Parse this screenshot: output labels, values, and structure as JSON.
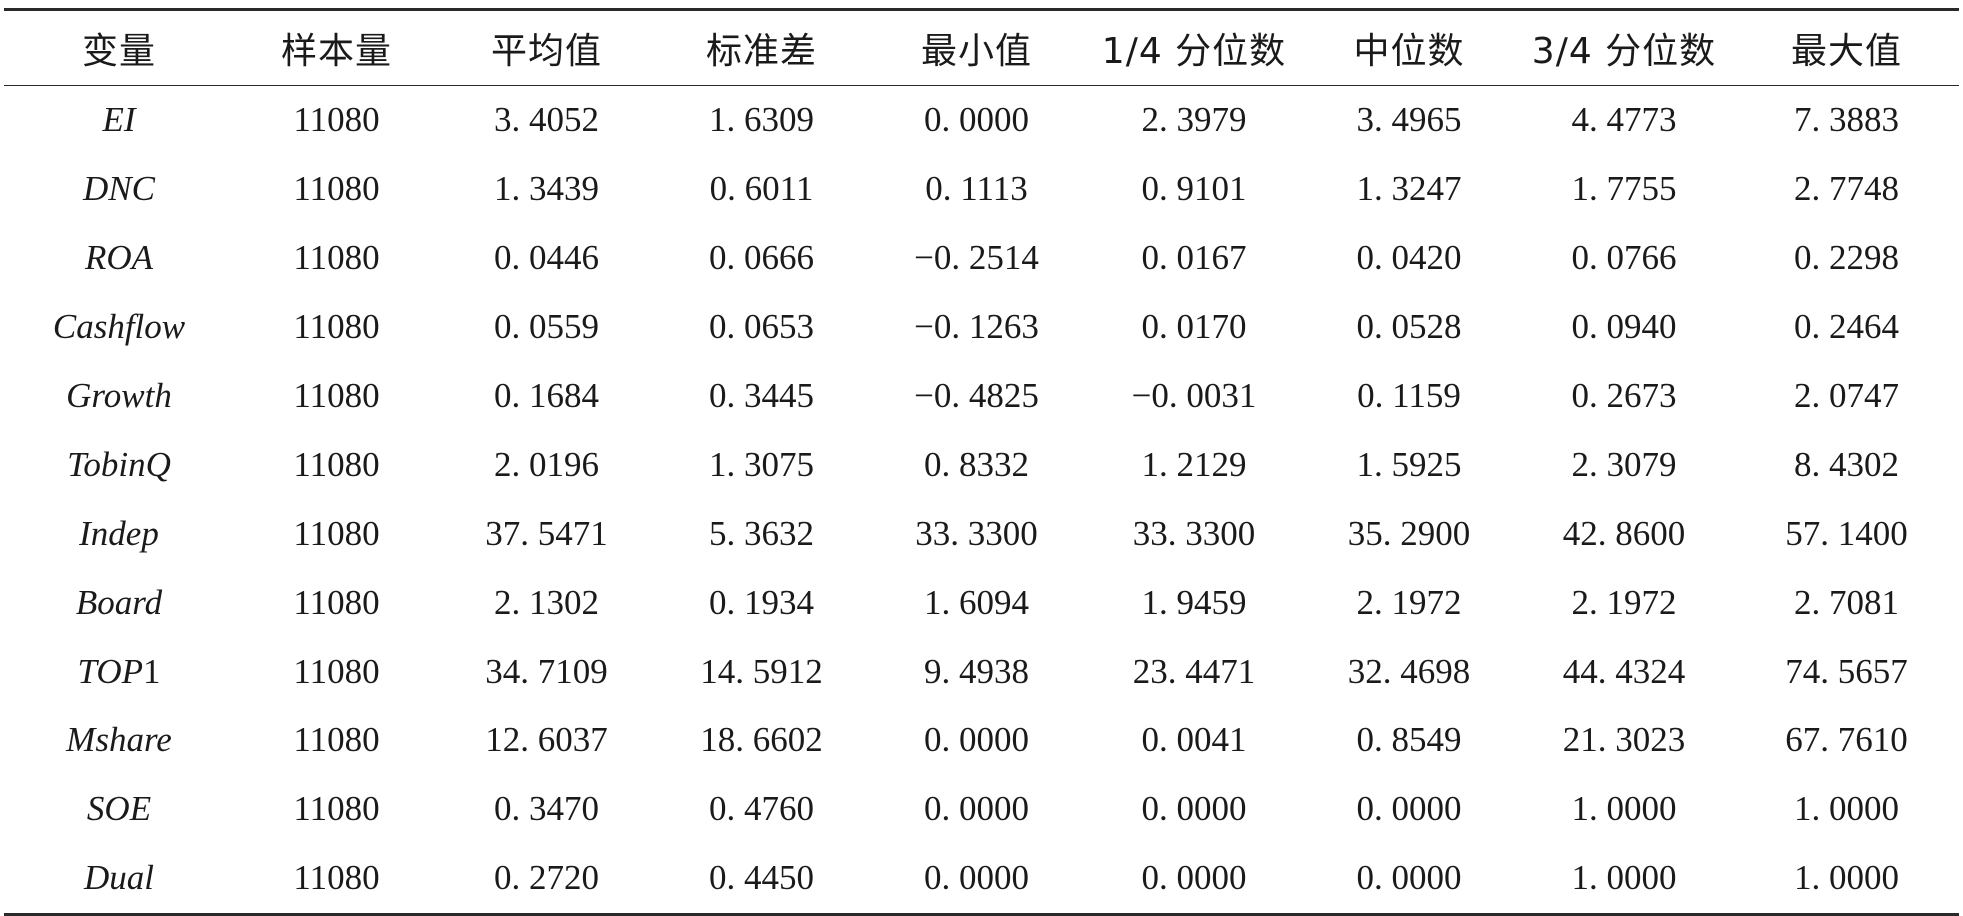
{
  "table": {
    "headers": [
      "变量",
      "样本量",
      "平均值",
      "标准差",
      "最小值",
      "1/4 分位数",
      "中位数",
      "3/4 分位数",
      "最大值"
    ],
    "rows": [
      {
        "variable": "EI",
        "cells": [
          "11080",
          "3. 4052",
          "1. 6309",
          "0. 0000",
          "2. 3979",
          "3. 4965",
          "4. 4773",
          "7. 3883"
        ]
      },
      {
        "variable": "DNC",
        "cells": [
          "11080",
          "1. 3439",
          "0. 6011",
          "0. 1113",
          "0. 9101",
          "1. 3247",
          "1. 7755",
          "2. 7748"
        ]
      },
      {
        "variable": "ROA",
        "cells": [
          "11080",
          "0. 0446",
          "0. 0666",
          "−0. 2514",
          "0. 0167",
          "0. 0420",
          "0. 0766",
          "0. 2298"
        ]
      },
      {
        "variable": "Cashflow",
        "cells": [
          "11080",
          "0. 0559",
          "0. 0653",
          "−0. 1263",
          "0. 0170",
          "0. 0528",
          "0. 0940",
          "0. 2464"
        ]
      },
      {
        "variable": "Growth",
        "cells": [
          "11080",
          "0. 1684",
          "0. 3445",
          "−0. 4825",
          "−0. 0031",
          "0. 1159",
          "0. 2673",
          "2. 0747"
        ]
      },
      {
        "variable": "TobinQ",
        "cells": [
          "11080",
          "2. 0196",
          "1. 3075",
          "0. 8332",
          "1. 2129",
          "1. 5925",
          "2. 3079",
          "8. 4302"
        ]
      },
      {
        "variable": "Indep",
        "cells": [
          "11080",
          "37. 5471",
          "5. 3632",
          "33. 3300",
          "33. 3300",
          "35. 2900",
          "42. 8600",
          "57. 1400"
        ]
      },
      {
        "variable": "Board",
        "cells": [
          "11080",
          "2. 1302",
          "0. 1934",
          "1. 6094",
          "1. 9459",
          "2. 1972",
          "2. 1972",
          "2. 7081"
        ]
      },
      {
        "variable": "TOP",
        "variable_suffix": "1",
        "cells": [
          "11080",
          "34. 7109",
          "14. 5912",
          "9. 4938",
          "23. 4471",
          "32. 4698",
          "44. 4324",
          "74. 5657"
        ]
      },
      {
        "variable": "Mshare",
        "cells": [
          "11080",
          "12. 6037",
          "18. 6602",
          "0. 0000",
          "0. 0041",
          "0. 8549",
          "21. 3023",
          "67. 7610"
        ]
      },
      {
        "variable": "SOE",
        "cells": [
          "11080",
          "0. 3470",
          "0. 4760",
          "0. 0000",
          "0. 0000",
          "0. 0000",
          "1. 0000",
          "1. 0000"
        ]
      },
      {
        "variable": "Dual",
        "cells": [
          "11080",
          "0. 2720",
          "0. 4450",
          "0. 0000",
          "0. 0000",
          "0. 0000",
          "1. 0000",
          "1. 0000"
        ]
      }
    ]
  }
}
